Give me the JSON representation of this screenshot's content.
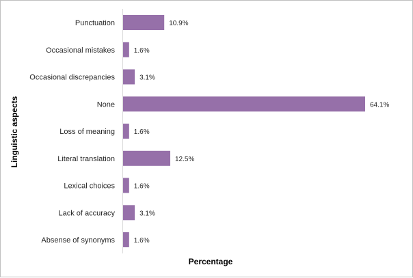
{
  "chart_data": {
    "type": "bar",
    "orientation": "horizontal",
    "categories": [
      "Punctuation",
      "Occasional mistakes",
      "Occasional discrepancies",
      "None",
      "Loss of meaning",
      "Literal translation",
      "Lexical choices",
      "Lack of accuracy",
      "Absense of synonyms"
    ],
    "values": [
      10.9,
      1.6,
      3.1,
      64.1,
      1.6,
      12.5,
      1.6,
      3.1,
      1.6
    ],
    "value_labels": [
      "10.9%",
      "1.6%",
      "3.1%",
      "64.1%",
      "1.6%",
      "12.5%",
      "1.6%",
      "3.1%",
      "1.6%"
    ],
    "title": "",
    "xlabel": "Percentage",
    "ylabel": "Linguistic aspects",
    "xlim": [
      0,
      64.1
    ],
    "grid": false,
    "legend": "none",
    "bar_color": "#9670a9"
  }
}
